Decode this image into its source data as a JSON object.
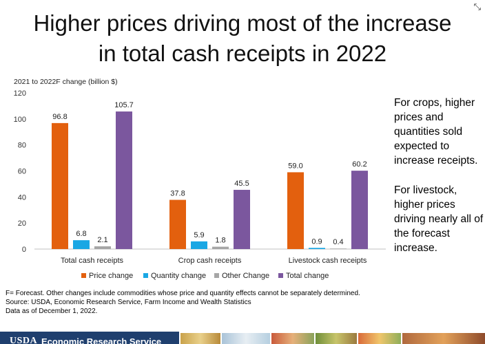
{
  "title_line1": "Higher prices driving most of the increase",
  "title_line2": "in total cash receipts in 2022",
  "chart_data": {
    "type": "bar",
    "ylabel": "2021 to 2022F change (billion $)",
    "ylim": [
      0,
      120
    ],
    "yticks": [
      0,
      20,
      40,
      60,
      80,
      100,
      120
    ],
    "categories": [
      "Total cash receipts",
      "Crop cash receipts",
      "Livestock cash receipts"
    ],
    "series": [
      {
        "name": "Price change",
        "color": "#e3600e",
        "values": [
          96.8,
          37.8,
          59.0
        ],
        "labels": [
          "96.8",
          "37.8",
          "59.0"
        ]
      },
      {
        "name": "Quantity change",
        "color": "#1aa7e4",
        "values": [
          6.8,
          5.9,
          0.9
        ],
        "labels": [
          "6.8",
          "5.9",
          "0.9"
        ]
      },
      {
        "name": "Other Change",
        "color": "#a6a6a6",
        "values": [
          2.1,
          1.8,
          0.4
        ],
        "labels": [
          "2.1",
          "1.8",
          "0.4"
        ]
      },
      {
        "name": "Total change",
        "color": "#7b579e",
        "values": [
          105.7,
          45.5,
          60.2
        ],
        "labels": [
          "105.7",
          "45.5",
          "60.2"
        ]
      }
    ],
    "legend_position": "bottom",
    "grid": false
  },
  "side_text_1": "For crops, higher prices and quantities sold expected to increase receipts.",
  "side_text_2": "For livestock, higher prices driving nearly all of the forecast increase.",
  "footnote_1": "F= Forecast. Other changes include commodities whose price and quantity effects cannot be separately determined.",
  "footnote_2": "Source: USDA, Economic Research Service, Farm Income and Wealth Statistics",
  "footnote_3": "Data as of December 1, 2022.",
  "banner_usda": "USDA",
  "banner_ers": "Economic Research Service",
  "expand_icon": "expand-arrows-icon"
}
